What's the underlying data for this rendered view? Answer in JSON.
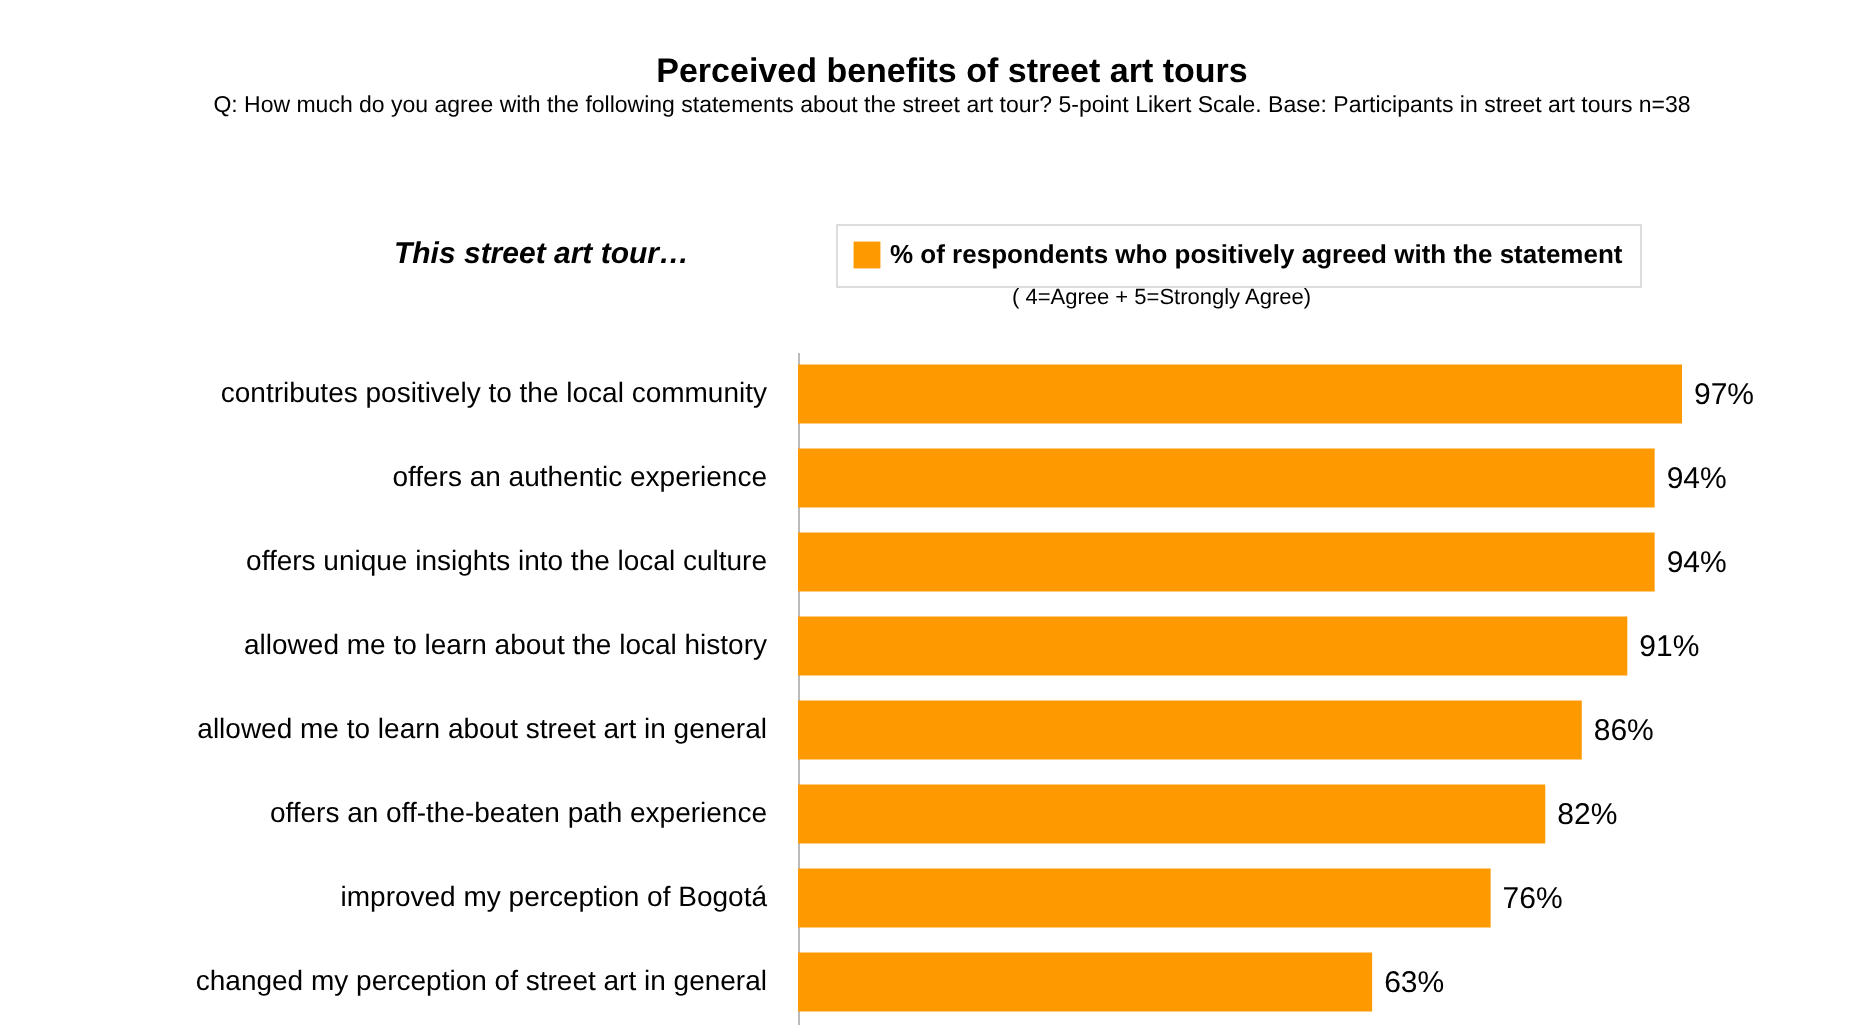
{
  "chart_data": {
    "type": "bar",
    "orientation": "horizontal",
    "title": "Perceived benefits of street art tours",
    "subtitle": "Q:  How much do you agree with the following statements about the street art tour?  5-point Likert Scale.  Base: Participants in street art tours  n=38",
    "ylabel": "This street art tour…",
    "categories": [
      "contributes positively to the local community",
      "offers an authentic experience",
      "offers unique insights into the local culture",
      "allowed me to learn about the local history",
      "allowed me to learn about street art in general",
      "offers an off-the-beaten path experience",
      "improved my perception of Bogotá",
      "changed my perception of street art in general"
    ],
    "series": [
      {
        "name": "% of respondents who positively agreed with the statement",
        "color": "#ff9900",
        "values": [
          97,
          94,
          94,
          91,
          86,
          82,
          76,
          63
        ],
        "value_labels": [
          "97%",
          "94%",
          "94%",
          "91%",
          "86%",
          "82%",
          "76%",
          "63%"
        ]
      }
    ],
    "annotations": [
      "( 4=Agree + 5=Strongly Agree)"
    ],
    "legend": "top",
    "grid": false
  }
}
